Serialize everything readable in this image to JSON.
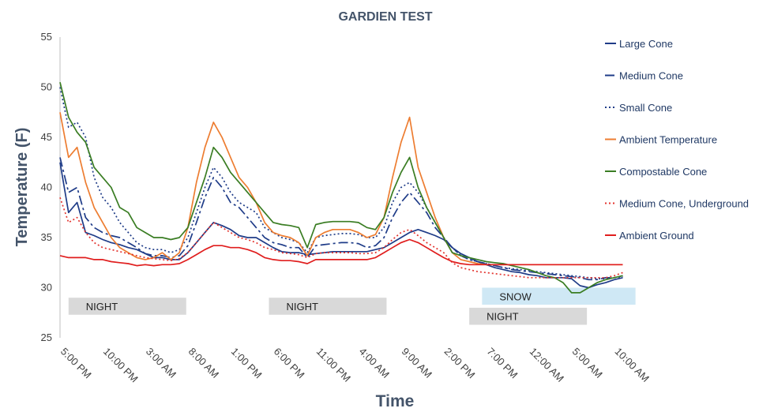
{
  "chart_data": {
    "type": "line",
    "title": "GARDIEN TEST",
    "xlabel": "Time",
    "ylabel": "Temperature (F)",
    "ylim": [
      25,
      55
    ],
    "yticks": [
      25,
      30,
      35,
      40,
      45,
      50,
      55
    ],
    "x_hours": [
      0,
      78
    ],
    "xticks": [
      {
        "label": "5:00 PM",
        "h": 0
      },
      {
        "label": "10:00 PM",
        "h": 5
      },
      {
        "label": "3:00 AM",
        "h": 10
      },
      {
        "label": "8:00 AM",
        "h": 15
      },
      {
        "label": "1:00 PM",
        "h": 20
      },
      {
        "label": "6:00 PM",
        "h": 25
      },
      {
        "label": "11:00 PM",
        "h": 30
      },
      {
        "label": "4:00 AM",
        "h": 35
      },
      {
        "label": "9:00 AM",
        "h": 40
      },
      {
        "label": "2:00 PM",
        "h": 45
      },
      {
        "label": "7:00 PM",
        "h": 50
      },
      {
        "label": "12:00 AM",
        "h": 55
      },
      {
        "label": "5:00 AM",
        "h": 60
      },
      {
        "label": "10:00 AM",
        "h": 65
      }
    ],
    "grid": false,
    "legend_position": "right",
    "x": [
      0,
      1,
      2,
      3,
      4,
      5,
      6,
      7,
      8,
      9,
      10,
      11,
      12,
      13,
      14,
      15,
      16,
      17,
      18,
      19,
      20,
      21,
      22,
      23,
      24,
      25,
      26,
      27,
      28,
      29,
      30,
      31,
      32,
      33,
      34,
      35,
      36,
      37,
      38,
      39,
      40,
      41,
      42,
      43,
      44,
      45,
      46,
      47,
      48,
      49,
      50,
      51,
      52,
      53,
      54,
      55,
      56,
      57,
      58,
      59,
      60,
      61,
      62,
      63,
      64,
      65,
      66
    ],
    "series": [
      {
        "name": "Large Cone",
        "color": "#1f3c88",
        "dash": "",
        "values": [
          42.5,
          37.5,
          38.5,
          35.5,
          35.2,
          34.8,
          34.5,
          34.3,
          34.0,
          33.8,
          33.4,
          33.0,
          33.0,
          32.8,
          32.8,
          33.5,
          34.5,
          35.5,
          36.5,
          36.2,
          35.8,
          35.2,
          35.0,
          35.0,
          34.5,
          34.0,
          33.6,
          33.5,
          33.5,
          33.3,
          33.4,
          33.5,
          33.6,
          33.6,
          33.6,
          33.6,
          33.6,
          33.8,
          34.0,
          34.5,
          35.0,
          35.5,
          35.8,
          35.5,
          35.2,
          34.8,
          34.0,
          33.4,
          33.0,
          32.6,
          32.3,
          32.0,
          31.8,
          31.6,
          31.5,
          31.3,
          31.2,
          31.0,
          31.0,
          31.0,
          30.9,
          30.2,
          30.0,
          30.3,
          30.5,
          30.8,
          31.0
        ]
      },
      {
        "name": "Medium Cone",
        "color": "#1f3c88",
        "dash": "12,4,3,4",
        "values": [
          43.0,
          39.5,
          40.0,
          37.0,
          36.0,
          35.5,
          35.2,
          35.0,
          34.5,
          34.0,
          33.4,
          33.2,
          33.2,
          33.0,
          33.2,
          34.2,
          36.5,
          39.0,
          41.0,
          40.0,
          38.5,
          38.0,
          37.0,
          36.0,
          35.0,
          34.5,
          34.3,
          34.0,
          34.0,
          33.0,
          34.2,
          34.3,
          34.4,
          34.5,
          34.5,
          34.4,
          34.0,
          34.2,
          35.0,
          37.0,
          38.5,
          39.5,
          38.5,
          37.5,
          36.0,
          35.0,
          34.0,
          33.2,
          32.8,
          32.6,
          32.4,
          32.2,
          32.0,
          31.8,
          31.7,
          31.6,
          31.5,
          31.4,
          31.3,
          31.2,
          31.1,
          31.0,
          30.8,
          30.8,
          31.0,
          31.0,
          31.2
        ]
      },
      {
        "name": "Small Cone",
        "color": "#1f3c88",
        "dash": "2,3",
        "values": [
          50.0,
          46.0,
          46.5,
          45.0,
          41.0,
          39.0,
          38.0,
          36.5,
          35.5,
          34.5,
          34.0,
          33.8,
          33.8,
          33.5,
          33.8,
          35.0,
          37.5,
          40.0,
          42.0,
          41.0,
          39.5,
          38.5,
          38.0,
          37.5,
          36.0,
          35.5,
          35.0,
          34.8,
          34.5,
          33.5,
          35.0,
          35.2,
          35.3,
          35.4,
          35.4,
          35.3,
          35.0,
          35.0,
          36.0,
          38.5,
          40.0,
          40.5,
          39.5,
          38.0,
          36.5,
          35.0,
          34.0,
          33.2,
          32.8,
          32.6,
          32.4,
          32.2,
          32.0,
          31.9,
          31.8,
          31.7,
          31.6,
          31.5,
          31.4,
          31.3,
          31.2,
          31.1,
          31.0,
          30.9,
          30.9,
          31.0,
          31.1
        ]
      },
      {
        "name": "Ambient Temperature",
        "color": "#ed7d31",
        "dash": "",
        "values": [
          47.5,
          43.0,
          44.0,
          40.5,
          38.0,
          36.5,
          35.0,
          34.0,
          33.5,
          33.0,
          32.8,
          33.0,
          33.5,
          32.8,
          33.5,
          36.0,
          40.5,
          44.0,
          46.5,
          45.0,
          43.0,
          41.0,
          40.0,
          38.5,
          36.5,
          35.5,
          35.2,
          35.0,
          34.5,
          33.2,
          35.0,
          35.5,
          35.8,
          35.8,
          35.8,
          35.5,
          35.0,
          35.3,
          37.0,
          41.0,
          44.5,
          47.0,
          42.0,
          39.5,
          37.0,
          35.0,
          33.5,
          32.8,
          32.6,
          32.4,
          32.3,
          32.3,
          32.3,
          32.3,
          32.3,
          32.3,
          32.3,
          32.3,
          32.3,
          32.3,
          32.3,
          32.3,
          32.3,
          32.3,
          32.3,
          32.3,
          32.3
        ]
      },
      {
        "name": "Compostable Cone",
        "color": "#3a7d23",
        "dash": "",
        "values": [
          50.5,
          47.0,
          45.5,
          44.5,
          42.0,
          41.0,
          40.0,
          38.0,
          37.5,
          36.0,
          35.5,
          35.0,
          35.0,
          34.8,
          35.0,
          36.0,
          38.5,
          41.0,
          44.0,
          43.0,
          41.5,
          40.5,
          39.5,
          38.5,
          37.5,
          36.5,
          36.3,
          36.2,
          36.0,
          34.0,
          36.3,
          36.5,
          36.6,
          36.6,
          36.6,
          36.5,
          36.0,
          35.8,
          37.0,
          39.5,
          41.5,
          43.0,
          40.0,
          38.0,
          36.5,
          35.0,
          33.5,
          33.2,
          33.0,
          32.8,
          32.6,
          32.5,
          32.4,
          32.2,
          32.0,
          31.8,
          31.5,
          31.2,
          31.0,
          30.5,
          29.5,
          29.5,
          30.0,
          30.5,
          30.8,
          31.0,
          31.2
        ]
      },
      {
        "name": "Medium Cone, Underground",
        "color": "#e3342f",
        "dash": "2,3",
        "values": [
          39.0,
          36.5,
          37.0,
          35.5,
          34.5,
          34.0,
          33.8,
          33.6,
          33.4,
          33.2,
          33.0,
          32.9,
          32.8,
          32.7,
          32.9,
          33.5,
          34.5,
          35.5,
          36.5,
          36.0,
          35.5,
          35.0,
          34.8,
          34.5,
          34.0,
          33.8,
          33.5,
          33.4,
          33.3,
          33.0,
          33.4,
          33.5,
          33.5,
          33.5,
          33.5,
          33.4,
          33.4,
          33.5,
          34.0,
          34.8,
          35.5,
          35.8,
          35.2,
          34.5,
          34.0,
          33.5,
          32.5,
          32.0,
          31.8,
          31.6,
          31.5,
          31.4,
          31.3,
          31.2,
          31.1,
          31.0,
          31.0,
          31.0,
          31.0,
          31.0,
          31.0,
          31.0,
          31.0,
          31.0,
          31.0,
          31.2,
          31.5
        ]
      },
      {
        "name": "Ambient Ground",
        "color": "#e01e1e",
        "dash": "",
        "values": [
          33.2,
          33.0,
          33.0,
          33.0,
          32.8,
          32.8,
          32.6,
          32.5,
          32.4,
          32.2,
          32.3,
          32.2,
          32.3,
          32.3,
          32.4,
          32.8,
          33.3,
          33.8,
          34.2,
          34.2,
          34.0,
          34.0,
          33.8,
          33.5,
          33.0,
          32.8,
          32.7,
          32.7,
          32.6,
          32.4,
          32.8,
          32.8,
          32.8,
          32.8,
          32.8,
          32.8,
          32.8,
          33.0,
          33.5,
          34.0,
          34.5,
          34.8,
          34.5,
          34.0,
          33.5,
          33.0,
          32.6,
          32.4,
          32.3,
          32.3,
          32.3,
          32.3,
          32.3,
          32.3,
          32.3,
          32.3,
          32.3,
          32.3,
          32.3,
          32.3,
          32.3,
          32.3,
          32.3,
          32.3,
          32.3,
          32.3,
          32.3
        ]
      }
    ],
    "annotations": [
      {
        "label": "NIGHT",
        "h_start": 1.0,
        "h_end": 14.8,
        "y_top": 29.0,
        "y_bottom": 27.3,
        "color": "#d9d9d9"
      },
      {
        "label": "NIGHT",
        "h_start": 24.5,
        "h_end": 38.3,
        "y_top": 29.0,
        "y_bottom": 27.3,
        "color": "#d9d9d9"
      },
      {
        "label": "SNOW",
        "h_start": 49.5,
        "h_end": 67.5,
        "y_top": 30.0,
        "y_bottom": 28.3,
        "color": "#cfe8f5"
      },
      {
        "label": "NIGHT",
        "h_start": 48.0,
        "h_end": 61.8,
        "y_top": 28.0,
        "y_bottom": 26.3,
        "color": "#d9d9d9"
      }
    ]
  }
}
